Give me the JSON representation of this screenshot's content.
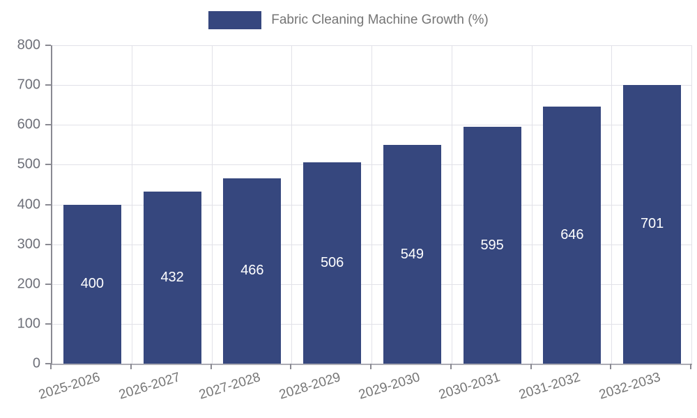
{
  "legend": {
    "label": "Fabric Cleaning Machine Growth (%)"
  },
  "chart_data": {
    "type": "bar",
    "title": "",
    "series_name": "Fabric Cleaning Machine Growth (%)",
    "categories": [
      "2025-2026",
      "2026-2027",
      "2027-2028",
      "2028-2029",
      "2029-2030",
      "2030-2031",
      "2031-2032",
      "2032-2033"
    ],
    "values": [
      400,
      432,
      466,
      506,
      549,
      595,
      646,
      701
    ],
    "value_labels_shown": true,
    "xlabel": "",
    "ylabel": "",
    "ylim": [
      0,
      800
    ],
    "ytick_interval": 100,
    "ytick_labels": [
      "0",
      "100",
      "200",
      "300",
      "400",
      "500",
      "600",
      "700",
      "800"
    ],
    "grid": true,
    "legend_position": "top",
    "colors": {
      "bar": "#36477E",
      "value_label": "#FFFFFF",
      "grid_line": "#E1E1E8",
      "axis_line": "#8A8A92",
      "tick_label": "#6E7079",
      "category_label": "#757575",
      "legend_text": "#757575",
      "background": "#FFFFFF"
    }
  }
}
